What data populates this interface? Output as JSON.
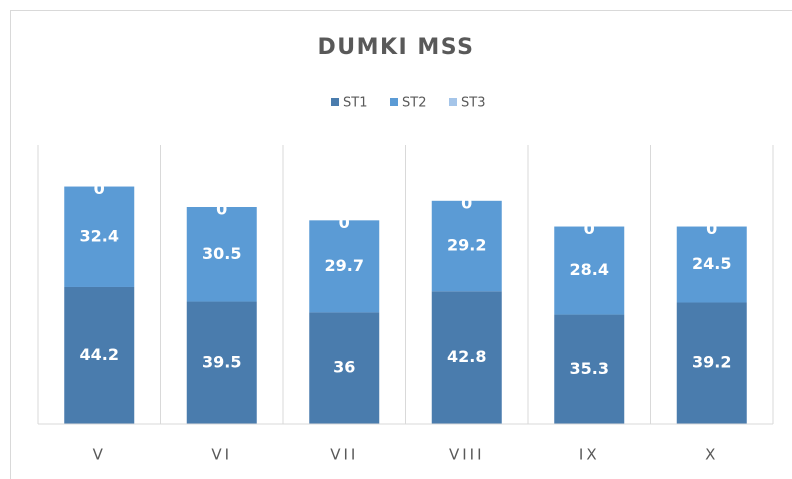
{
  "chart_data": {
    "type": "stacked_bar",
    "title": "DUMKI MSS",
    "categories": [
      "V",
      "VI",
      "VII",
      "VIII",
      "IX",
      "X"
    ],
    "series": [
      {
        "name": "ST1",
        "color": "#4a7cad",
        "values": [
          44.2,
          39.5,
          36,
          42.8,
          35.3,
          39.2
        ]
      },
      {
        "name": "ST2",
        "color": "#5b9bd5",
        "values": [
          32.4,
          30.5,
          29.7,
          29.2,
          28.4,
          24.5
        ]
      },
      {
        "name": "ST3",
        "color": "#a5c5e9",
        "values": [
          0,
          0,
          0,
          0,
          0,
          0
        ]
      }
    ],
    "ylim": [
      0,
      90
    ],
    "legend": "top"
  }
}
